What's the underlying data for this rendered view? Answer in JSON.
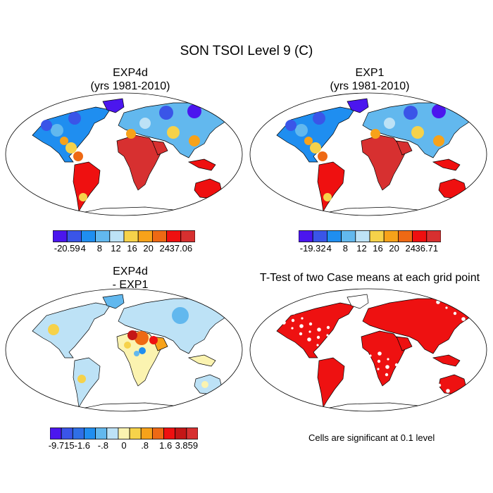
{
  "figure": {
    "title": "SON TSOI Level 9 (C)"
  },
  "panels": [
    {
      "id": "exp4d",
      "title_line1": "EXP4d",
      "title_line2": "(yrs 1981-2010)",
      "colorbar": {
        "colors": [
          "#4b16ee",
          "#3a55e8",
          "#1f8ef0",
          "#62b8ee",
          "#bde2f6",
          "#f6d24a",
          "#f7a21a",
          "#ee6914",
          "#ef1010",
          "#d73030"
        ],
        "labels": [
          "-20.59",
          "4",
          "8",
          "12",
          "16",
          "20",
          "24",
          "37.06"
        ]
      }
    },
    {
      "id": "exp1",
      "title_line1": "EXP1",
      "title_line2": "(yrs 1981-2010)",
      "colorbar": {
        "colors": [
          "#4b16ee",
          "#3a55e8",
          "#1f8ef0",
          "#62b8ee",
          "#bde2f6",
          "#f6d24a",
          "#f7a21a",
          "#ee6914",
          "#ef1010",
          "#d73030"
        ],
        "labels": [
          "-19.32",
          "4",
          "8",
          "12",
          "16",
          "20",
          "24",
          "36.71"
        ]
      }
    },
    {
      "id": "diff",
      "title_line1": "EXP4d",
      "title_line2": "- EXP1",
      "colorbar": {
        "colors": [
          "#4b16ee",
          "#3a55e8",
          "#2f6fe6",
          "#1f8ef0",
          "#62b8ee",
          "#bde2f6",
          "#fbf3b0",
          "#f6d24a",
          "#f7a21a",
          "#ee6914",
          "#ef1010",
          "#c41616",
          "#d73030"
        ],
        "labels": [
          "-9.715",
          "-1.6",
          "-.8",
          "0",
          ".8",
          "1.6",
          "3.859"
        ]
      }
    },
    {
      "id": "ttest",
      "title_line1": "T-Test of two Case means at each grid point",
      "note": "Cells are significant at 0.1 level",
      "significant_color": "#ee1111"
    }
  ]
}
